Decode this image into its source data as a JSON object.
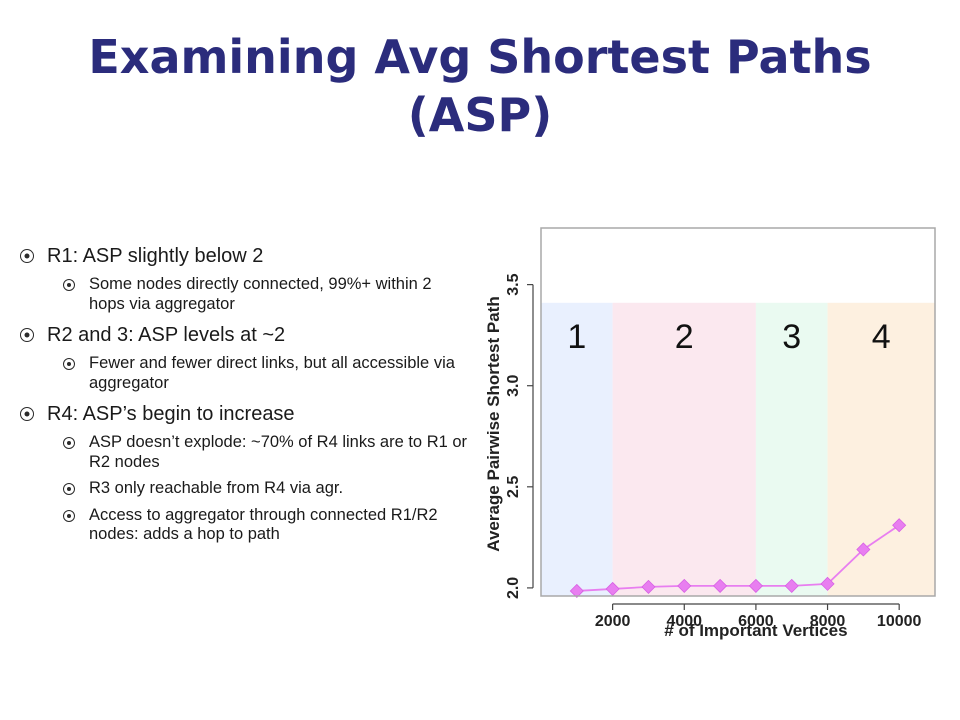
{
  "slide": {
    "title_line1": "Examining Avg Shortest Paths",
    "title_line2": "(ASP)"
  },
  "bullets": [
    {
      "text": "R1: ASP slightly below 2",
      "sub": [
        "Some nodes directly connected, 99%+ within 2 hops via aggregator"
      ]
    },
    {
      "text": "R2 and 3: ASP levels at ~2",
      "sub": [
        "Fewer and fewer direct links, but all accessible via aggregator"
      ]
    },
    {
      "text": "R4: ASP’s begin to increase",
      "sub": [
        "ASP doesn’t explode: ~70% of R4 links are to R1 or R2 nodes",
        "R3 only reachable from R4 via agr.",
        "Access to aggregator through connected R1/R2 nodes: adds a hop to path"
      ]
    }
  ],
  "chart_data": {
    "type": "line",
    "xlabel": "# of Important Vertices",
    "ylabel": "Average Pairwise Shortest Path",
    "xlim": [
      0,
      11000
    ],
    "ylim": [
      1.96,
      3.78
    ],
    "x_ticks": [
      2000,
      4000,
      6000,
      8000,
      10000
    ],
    "y_ticks": [
      2.0,
      2.5,
      3.0,
      3.5
    ],
    "grid": false,
    "regions": [
      {
        "label": "1",
        "x_start": 0,
        "x_end": 2000,
        "color": "#e9f0fe"
      },
      {
        "label": "2",
        "x_start": 2000,
        "x_end": 6000,
        "color": "#fbe8ef"
      },
      {
        "label": "3",
        "x_start": 6000,
        "x_end": 8000,
        "color": "#eafaf1"
      },
      {
        "label": "4",
        "x_start": 8000,
        "x_end": 11000,
        "color": "#fdf0e0"
      }
    ],
    "regions_top": 3.41,
    "series_color": "#e87ef0",
    "series": [
      {
        "x": [
          1000,
          2000,
          3000,
          4000,
          5000,
          6000,
          7000,
          8000,
          9000,
          10000
        ],
        "values": [
          1.985,
          1.995,
          2.005,
          2.01,
          2.01,
          2.01,
          2.01,
          2.02,
          2.19,
          2.31
        ]
      }
    ]
  }
}
